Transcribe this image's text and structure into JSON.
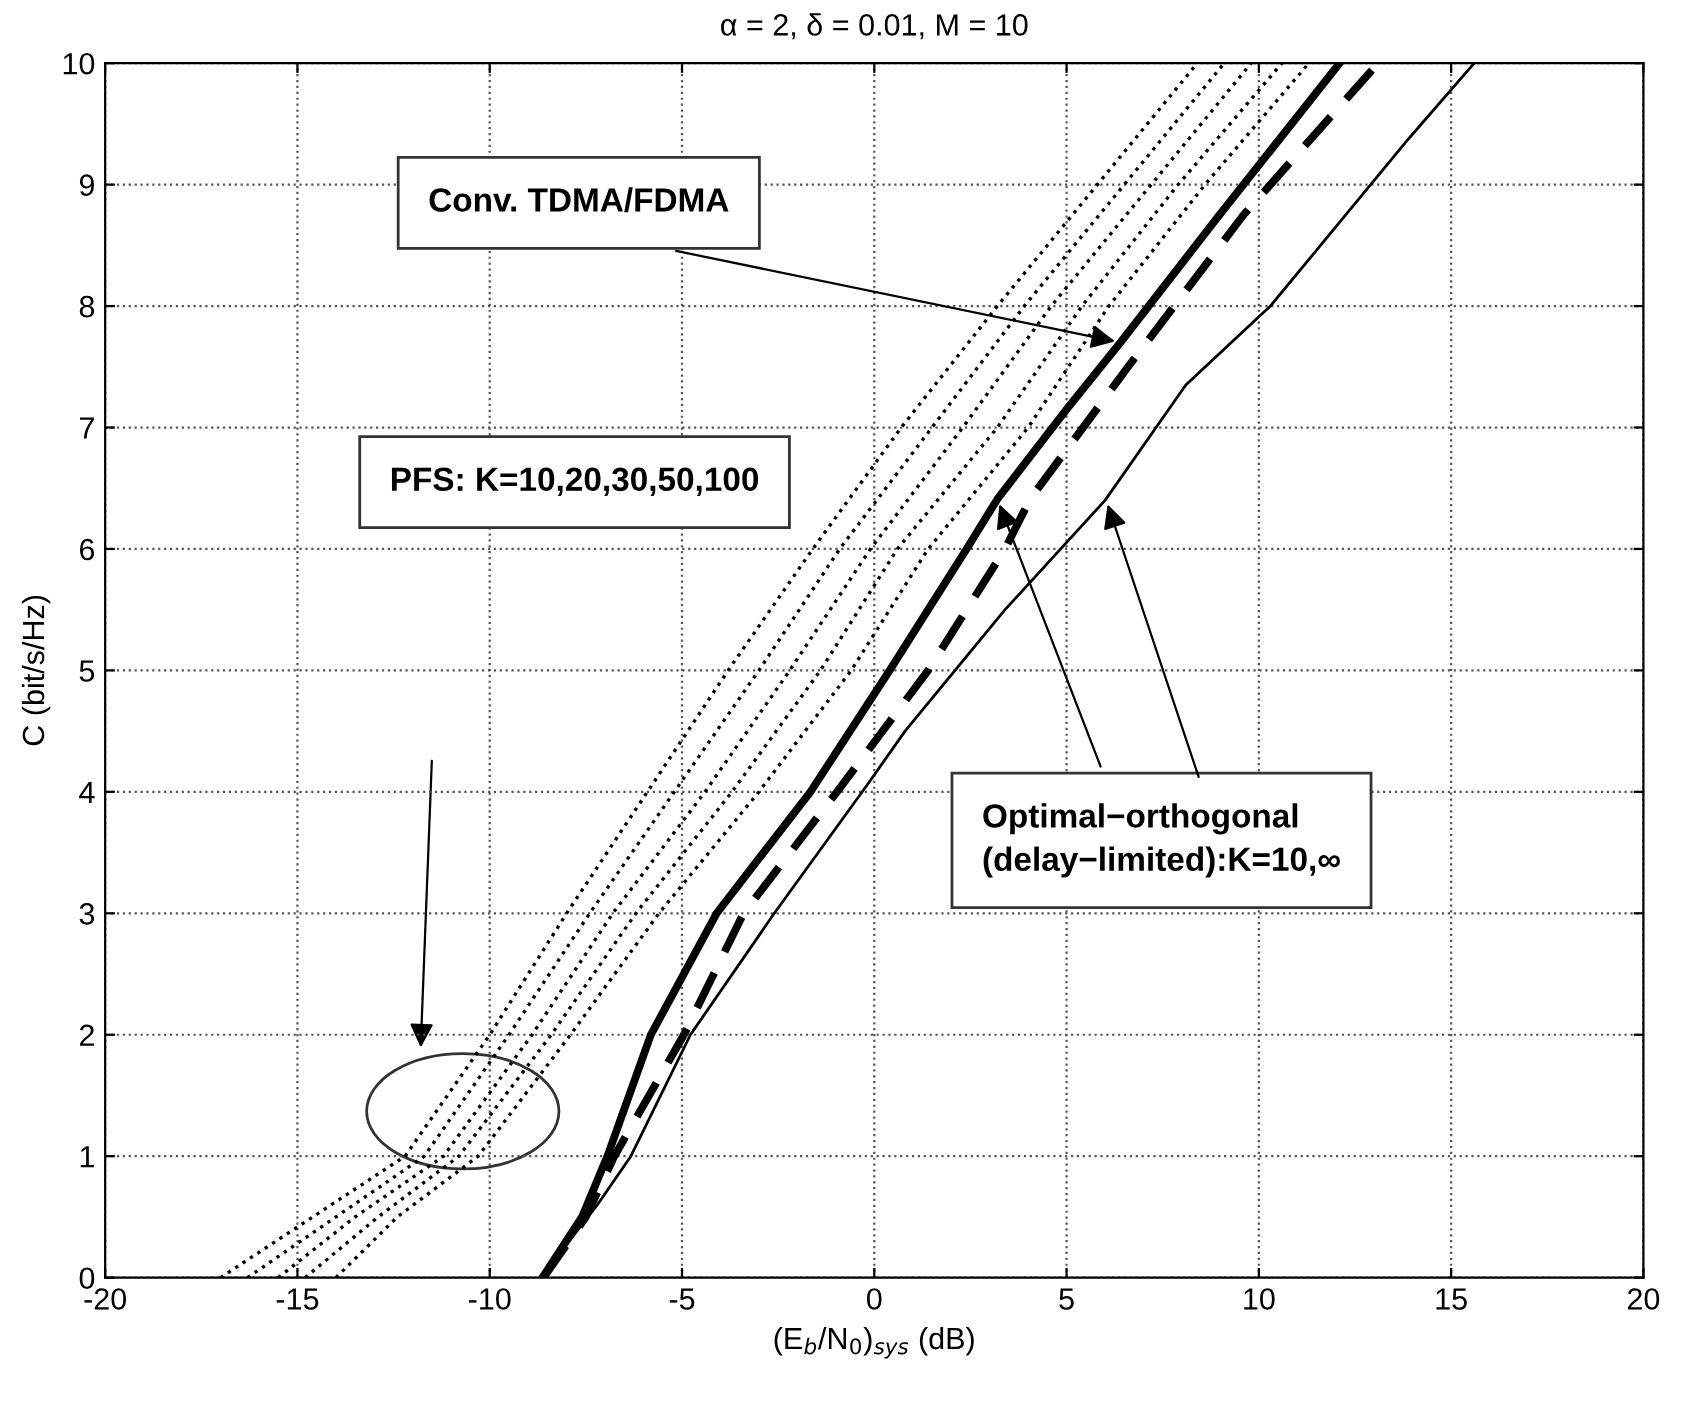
{
  "chart_data": {
    "type": "line",
    "title": "α = 2, δ = 0.01, M = 10",
    "xlabel": "(E$_{b}$/N$_{0}$)$_{sys}$ (dB)",
    "ylabel": "C (bit/s/Hz)",
    "xlim": [
      -20,
      20
    ],
    "ylim": [
      0,
      10
    ],
    "xticks": [
      -20,
      -15,
      -10,
      -5,
      0,
      5,
      10,
      15,
      20
    ],
    "yticks": [
      0,
      1,
      2,
      3,
      4,
      5,
      6,
      7,
      8,
      9,
      10
    ],
    "grid": true,
    "legend": false,
    "series": [
      {
        "color": "#000000",
        "line_style": "dotted",
        "x": [
          -17.0,
          -14.6,
          -12.2,
          -10.0,
          -8.0,
          -5.9,
          -3.8,
          -1.6,
          0.7,
          3.2,
          5.8,
          8.4
        ],
        "values": [
          0,
          0.5,
          1,
          2,
          3,
          4,
          5,
          6,
          7,
          8,
          9,
          10
        ]
      },
      {
        "color": "#000000",
        "line_style": "dotted",
        "x": [
          -16.3,
          -14.0,
          -11.7,
          -9.5,
          -7.4,
          -5.2,
          -3.0,
          -0.9,
          1.5,
          3.9,
          6.5,
          9.1
        ],
        "values": [
          0,
          0.5,
          1,
          2,
          3,
          4,
          5,
          6,
          7,
          8,
          9,
          10
        ]
      },
      {
        "color": "#000000",
        "line_style": "dotted",
        "x": [
          -15.5,
          -13.5,
          -11.2,
          -8.9,
          -6.8,
          -4.4,
          -2.2,
          -0.1,
          2.3,
          4.6,
          7.2,
          9.8
        ],
        "values": [
          0,
          0.5,
          1,
          2,
          3,
          4,
          5,
          6,
          7,
          8,
          9,
          10
        ]
      },
      {
        "color": "#000000",
        "line_style": "dotted",
        "x": [
          -14.8,
          -12.9,
          -10.8,
          -8.4,
          -6.2,
          -3.7,
          -1.4,
          0.6,
          3.2,
          5.4,
          7.9,
          10.6
        ],
        "values": [
          0,
          0.5,
          1,
          2,
          3,
          4,
          5,
          6,
          7,
          8,
          9,
          10
        ]
      },
      {
        "color": "#000000",
        "line_style": "dotted",
        "x": [
          -14.0,
          -12.4,
          -10.3,
          -7.9,
          -5.6,
          -3.0,
          -0.6,
          1.4,
          4.0,
          6.1,
          8.6,
          11.3
        ],
        "values": [
          0,
          0.5,
          1,
          2,
          3,
          4,
          5,
          6,
          7,
          8,
          9,
          10
        ]
      },
      {
        "color": "#000000",
        "line_style": "solid",
        "x": [
          -8.63,
          -7.6,
          -6.94,
          -5.81,
          -4.1,
          -1.66,
          0.4,
          2.4,
          3.2,
          5.0,
          6.4,
          8.9,
          12.1
        ],
        "values": [
          0,
          0.5,
          1,
          2,
          3,
          4,
          5,
          6,
          6.41,
          7.15,
          7.7,
          8.72,
          10
        ]
      },
      {
        "color": "#000000",
        "line_style": "dashed",
        "x": [
          -8.6,
          -7.5,
          -6.76,
          -4.95,
          -3.4,
          -0.97,
          1.4,
          3.4,
          4.05,
          6.6,
          9.6,
          13.1
        ],
        "values": [
          0,
          0.5,
          1,
          2,
          3,
          4,
          5,
          6,
          6.41,
          7.5,
          8.75,
          10
        ]
      },
      {
        "color": "#000000",
        "line_style": "solid",
        "x": [
          -8.6,
          -8.3,
          -7.2,
          -6.33,
          -4.78,
          -2.6,
          -0.2,
          0.8,
          3.4,
          6.0,
          8.1,
          10.3,
          13.9,
          15.6
        ],
        "values": [
          0,
          0.15,
          0.6,
          1,
          2,
          3,
          4.05,
          4.5,
          5.5,
          6.4,
          7.35,
          8.0,
          9.38,
          10
        ]
      }
    ],
    "annotations": [
      {
        "text": "Conv. TDMA/FDMA",
        "x": 6.4,
        "y": 7.7
      },
      "PFS: K=10,20,30,50,100",
      {
        "text": "Optimal−orthogonal\n(delay−limited):K=10,∞",
        "x": 3.2,
        "y": 6.41
      }
    ]
  }
}
